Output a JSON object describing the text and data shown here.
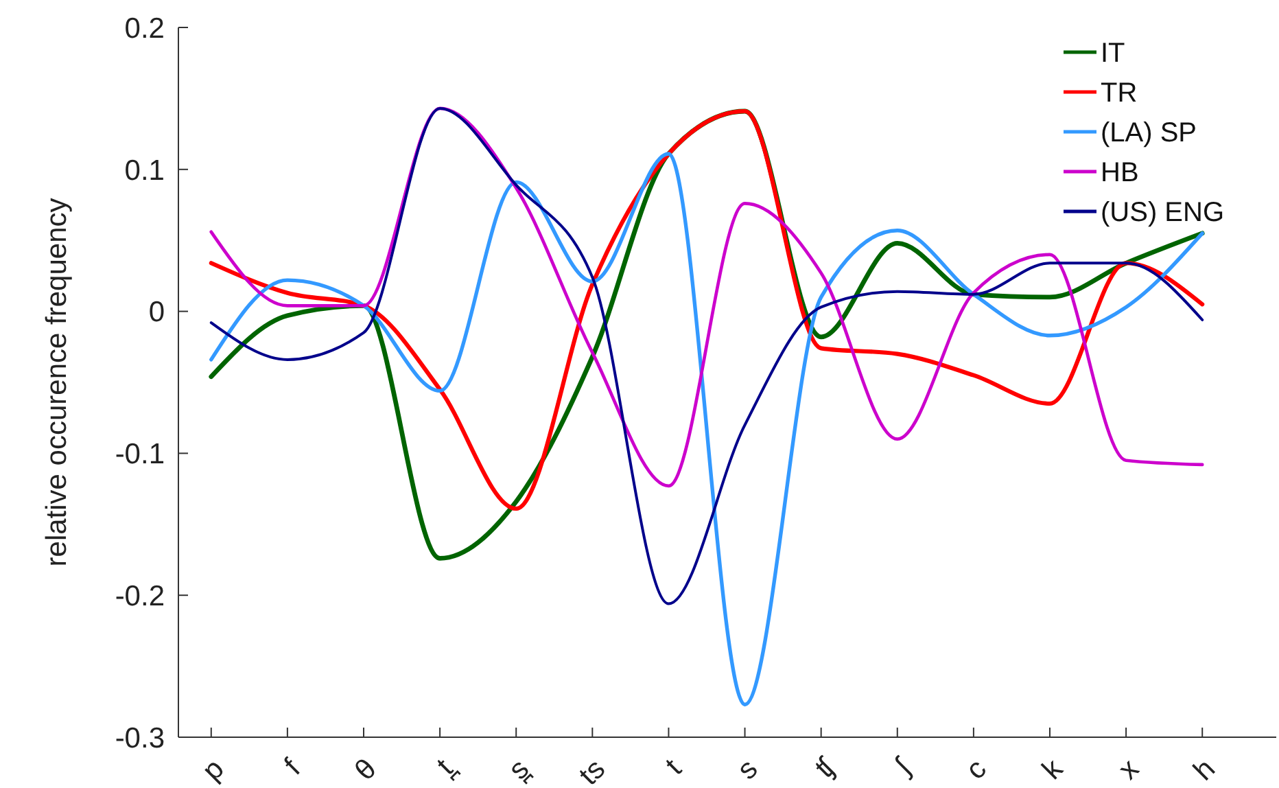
{
  "chart_data": {
    "type": "line",
    "ylabel": "relative occurence frequency",
    "categories": [
      "p",
      "f",
      "θ",
      "t̪",
      "s̪",
      "ts",
      "t",
      "s",
      "ʧ",
      "ʃ",
      "c",
      "k",
      "x",
      "h"
    ],
    "ylim": [
      -0.3,
      0.2
    ],
    "yticks": [
      -0.3,
      -0.2,
      -0.1,
      0,
      0.1,
      0.2
    ],
    "grid": false,
    "legend": "top right",
    "marker": "none",
    "line_style": "solid",
    "series": [
      {
        "name": "IT",
        "color": "#006400",
        "values": [
          -0.046,
          -0.003,
          0.004,
          -0.174,
          -0.134,
          -0.032,
          0.111,
          0.141,
          -0.018,
          0.048,
          0.012,
          0.01,
          0.034,
          0.055
        ]
      },
      {
        "name": "TR",
        "color": "#ff0000",
        "values": [
          0.034,
          0.013,
          0.004,
          -0.055,
          -0.139,
          0.019,
          0.111,
          0.141,
          -0.026,
          -0.03,
          -0.045,
          -0.065,
          0.034,
          0.005
        ]
      },
      {
        "name": "(LA) SP",
        "color": "#3399ff",
        "values": [
          -0.034,
          0.022,
          0.004,
          -0.056,
          0.091,
          0.021,
          0.111,
          -0.277,
          0.01,
          0.057,
          0.012,
          -0.017,
          0.003,
          0.055
        ]
      },
      {
        "name": "HB",
        "color": "#cc00cc",
        "values": [
          0.056,
          0.004,
          0.004,
          0.143,
          0.087,
          -0.029,
          -0.123,
          0.076,
          0.027,
          -0.09,
          0.013,
          0.04,
          -0.105,
          -0.108
        ]
      },
      {
        "name": "(US) ENG",
        "color": "#00008b",
        "values": [
          -0.008,
          -0.034,
          -0.015,
          0.143,
          0.089,
          0.024,
          -0.206,
          -0.08,
          0.003,
          0.014,
          0.012,
          0.034,
          0.034,
          -0.006
        ]
      }
    ]
  }
}
